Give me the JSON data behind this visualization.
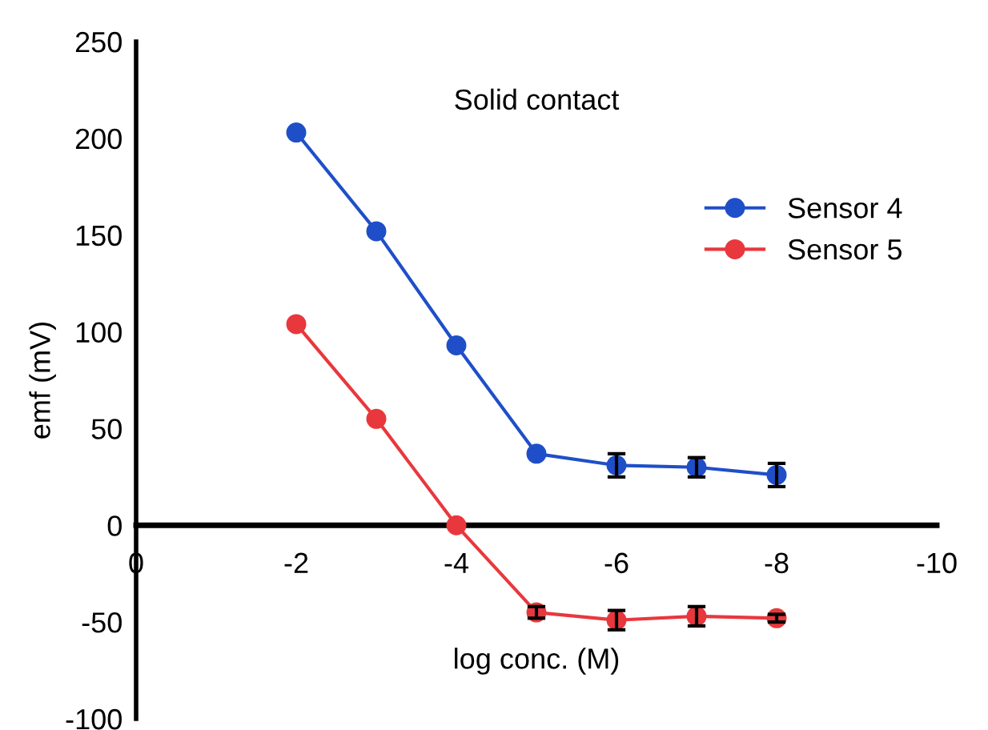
{
  "chart_data": {
    "type": "line",
    "title": "Solid contact",
    "xlabel": "log conc. (M)",
    "ylabel": "emf (mV)",
    "x": [
      -2,
      -3,
      -4,
      -5,
      -6,
      -7,
      -8
    ],
    "series": [
      {
        "name": "Sensor 4",
        "color": "#1f4fc8",
        "values": [
          203,
          152,
          93,
          37,
          31,
          30,
          26
        ],
        "errors": [
          null,
          null,
          null,
          null,
          6,
          5,
          6
        ]
      },
      {
        "name": "Sensor 5",
        "color": "#e8383d",
        "values": [
          104,
          55,
          0,
          -45,
          -49,
          -47,
          -48
        ],
        "errors": [
          null,
          null,
          null,
          3,
          5,
          5,
          2
        ]
      }
    ],
    "xlim": [
      0,
      -10
    ],
    "xticks": [
      0,
      -2,
      -4,
      -6,
      -8,
      -10
    ],
    "ylim": [
      -100,
      250
    ],
    "yticks": [
      -100,
      -50,
      0,
      50,
      100,
      150,
      200,
      250
    ],
    "marker": "circle",
    "line_style": "solid",
    "grid": false,
    "legend": "right"
  }
}
